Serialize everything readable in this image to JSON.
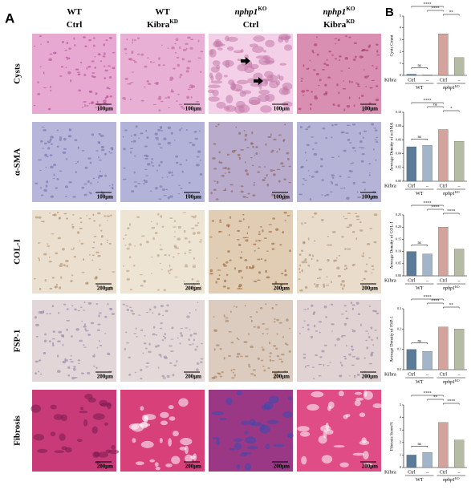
{
  "figure": {
    "panel_a": "A",
    "panel_b": "B",
    "columns": [
      {
        "line1": "WT",
        "line2": "Ctrl"
      },
      {
        "line1": "WT",
        "line2": "Kibra",
        "line2_sup": "KD"
      },
      {
        "line1": "nphp1",
        "line1_sup": "KO",
        "line2": "Ctrl"
      },
      {
        "line1": "nphp1",
        "line1_sup": "KO",
        "line2": "Kibra",
        "line2_sup": "KD"
      }
    ],
    "rows": [
      {
        "label": "Cysts",
        "scale": "100μm"
      },
      {
        "label": "α-SMA",
        "scale": "100μm"
      },
      {
        "label": "COL-I",
        "scale": "200μm"
      },
      {
        "label": "FSP-1",
        "scale": "200μm"
      },
      {
        "label": "Fibrosis",
        "scale": "200μm"
      }
    ]
  },
  "chart_data": [
    {
      "type": "bar",
      "y_label": "Cysts Count",
      "x_row_label": "Kibra",
      "categories": [
        "Ctrl",
        "–",
        "Ctrl",
        "–"
      ],
      "groups": [
        {
          "name": "WT"
        },
        {
          "name": "nphp1",
          "sup": "KO"
        }
      ],
      "values": [
        0.1,
        0.05,
        3.5,
        1.5
      ],
      "colors": [
        "#5b7c99",
        "#a3b6c9",
        "#d4a49c",
        "#b5bca3"
      ],
      "ylim": [
        0,
        5
      ],
      "yticks": [
        0,
        1,
        2,
        3,
        4,
        5
      ],
      "annotations": [
        "ns",
        "****",
        "****",
        "**"
      ]
    },
    {
      "type": "bar",
      "y_label": "Average Density of α-SMA",
      "x_row_label": "Kibra",
      "categories": [
        "Ctrl",
        "–",
        "Ctrl",
        "–"
      ],
      "groups": [
        {
          "name": "WT"
        },
        {
          "name": "nphp1",
          "sup": "KO"
        }
      ],
      "values": [
        0.05,
        0.052,
        0.075,
        0.058
      ],
      "colors": [
        "#5b7c99",
        "#a3b6c9",
        "#d4a49c",
        "#b5bca3"
      ],
      "ylim": [
        0,
        0.1
      ],
      "yticks": [
        {
          "value": 0,
          "label": "0.00"
        },
        {
          "value": 0.02,
          "label": "0.02"
        },
        {
          "value": 0.04,
          "label": "0.04"
        },
        {
          "value": 0.06,
          "label": "0.06"
        },
        {
          "value": 0.08,
          "label": "0.08"
        },
        {
          "value": 0.1,
          "label": "0.10"
        }
      ],
      "annotations": [
        "ns",
        "****",
        "ns",
        "*"
      ]
    },
    {
      "type": "bar",
      "y_label": "Average Density of COL-I",
      "x_row_label": "Kibra",
      "categories": [
        "Ctrl",
        "–",
        "Ctrl",
        "–"
      ],
      "groups": [
        {
          "name": "WT"
        },
        {
          "name": "nphp1",
          "sup": "KO"
        }
      ],
      "values": [
        0.1,
        0.09,
        0.2,
        0.11
      ],
      "colors": [
        "#5b7c99",
        "#a3b6c9",
        "#d4a49c",
        "#b5bca3"
      ],
      "ylim": [
        0,
        0.25
      ],
      "yticks": [
        {
          "value": 0,
          "label": "0.00"
        },
        {
          "value": 0.05,
          "label": "0.05"
        },
        {
          "value": 0.1,
          "label": "0.10"
        },
        {
          "value": 0.15,
          "label": "0.15"
        },
        {
          "value": 0.2,
          "label": "0.20"
        },
        {
          "value": 0.25,
          "label": "0.25"
        }
      ],
      "annotations": [
        "ns",
        "****",
        "****",
        "****"
      ]
    },
    {
      "type": "bar",
      "y_label": "Average Density of FSP-1",
      "x_row_label": "Kibra",
      "categories": [
        "Ctrl",
        "–",
        "Ctrl",
        "–"
      ],
      "groups": [
        {
          "name": "WT"
        },
        {
          "name": "nphp1",
          "sup": "KO"
        }
      ],
      "values": [
        0.1,
        0.09,
        0.21,
        0.2
      ],
      "colors": [
        "#5b7c99",
        "#a3b6c9",
        "#d4a49c",
        "#b5bca3"
      ],
      "ylim": [
        0,
        0.3
      ],
      "yticks": [
        {
          "value": 0,
          "label": "0.0"
        },
        0.1,
        0.2,
        0.3
      ],
      "annotations": [
        "ns",
        "****",
        "****",
        "**"
      ]
    },
    {
      "type": "bar",
      "y_label": "Fibrosis Score%",
      "x_row_label": "Kibra",
      "categories": [
        "Ctrl",
        "–",
        "Ctrl",
        "–"
      ],
      "groups": [
        {
          "name": "WT"
        },
        {
          "name": "nphp1",
          "sup": "KO"
        }
      ],
      "values": [
        1.0,
        1.2,
        3.6,
        2.2
      ],
      "colors": [
        "#5b7c99",
        "#a3b6c9",
        "#d4a49c",
        "#b5bca3"
      ],
      "ylim": [
        0,
        5
      ],
      "yticks": [
        0,
        1,
        2,
        3,
        4,
        5
      ],
      "annotations": [
        "ns",
        "****",
        "**",
        "****"
      ]
    }
  ]
}
